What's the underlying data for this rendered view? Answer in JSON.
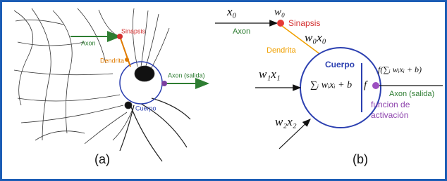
{
  "panel_a": {
    "synapse": "Sinapsis",
    "axon": "Axon",
    "dendrite": "Dendrita",
    "axon_output": "Axon (salida)",
    "body": "Cuerpo",
    "caption": "(a)"
  },
  "panel_b": {
    "input_0": "x₀",
    "weight_0": "w₀",
    "synapse": "Sinapsis",
    "axon": "Axon",
    "product_0": "w₀x₀",
    "dendrite": "Dendrita",
    "body": "Cuerpo",
    "product_1": "w₁x₁",
    "sum": "∑ᵢ wᵢxᵢ + b",
    "activation": "f",
    "output": "f(∑ᵢ wᵢxᵢ + b)",
    "axon_output": "Axon (salida)",
    "activation_label": "funcion de activación",
    "product_2": "w₂x₂",
    "caption": "(b)"
  }
}
